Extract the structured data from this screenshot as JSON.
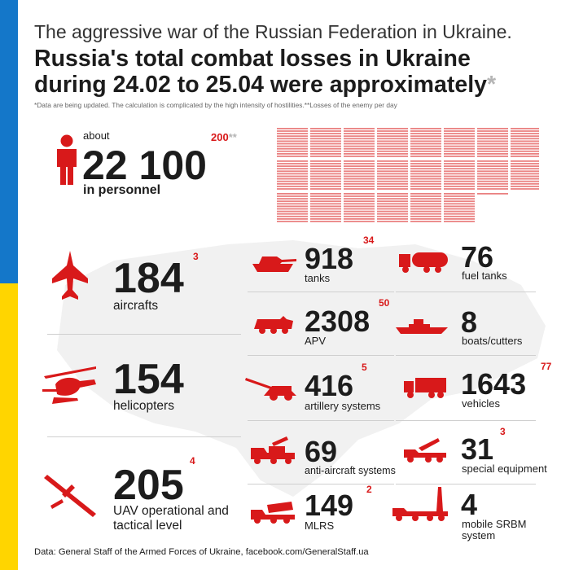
{
  "header": {
    "subtitle": "The aggressive war of the Russian Federation in Ukraine.",
    "title_line1": "Russia's total combat losses in Ukraine",
    "title_line2": "during 24.02 to 25.04 were approximately",
    "title_asterisk": "*",
    "note": "*Data are being updated. The calculation is complicated by the high intensity of hostilities.**Losses of the enemy per day"
  },
  "personnel": {
    "about": "about",
    "value": "22 100",
    "label": "in personnel",
    "daily": "200",
    "daily_mark": "**",
    "icon": "person-icon",
    "grid_count": 22100
  },
  "left_items": [
    {
      "id": "aircrafts",
      "icon": "fighter-jet-icon",
      "value": "184",
      "daily": "3",
      "label_lines": [
        "aircrafts"
      ]
    },
    {
      "id": "helicopters",
      "icon": "helicopter-icon",
      "value": "154",
      "daily": "",
      "label_lines": [
        "helicopters"
      ]
    },
    {
      "id": "uav",
      "icon": "drone-icon",
      "value": "205",
      "daily": "4",
      "label_lines": [
        "UAV operational and",
        "tactical level"
      ]
    }
  ],
  "middle_items": [
    {
      "id": "tanks",
      "icon": "tank-icon",
      "value": "918",
      "daily": "34",
      "label_lines": [
        "tanks"
      ]
    },
    {
      "id": "apv",
      "icon": "apv-icon",
      "value": "2308",
      "daily": "50",
      "label_lines": [
        "APV"
      ]
    },
    {
      "id": "artillery",
      "icon": "artillery-icon",
      "value": "416",
      "daily": "5",
      "label_lines": [
        "artillery systems"
      ]
    },
    {
      "id": "anti-aircraft",
      "icon": "anti-aircraft-icon",
      "value": "69",
      "daily": "",
      "label_lines": [
        "anti-aircraft systems"
      ]
    },
    {
      "id": "mlrs",
      "icon": "mlrs-icon",
      "value": "149",
      "daily": "2",
      "label_lines": [
        "MLRS"
      ]
    }
  ],
  "right_items": [
    {
      "id": "fuel-tanks",
      "icon": "fuel-tank-icon",
      "value": "76",
      "daily": "",
      "label_lines": [
        "fuel tanks"
      ]
    },
    {
      "id": "boats",
      "icon": "boat-icon",
      "value": "8",
      "daily": "",
      "label_lines": [
        "boats/cutters"
      ]
    },
    {
      "id": "vehicles",
      "icon": "truck-icon",
      "value": "1643",
      "daily": "77",
      "label_lines": [
        "vehicles"
      ]
    },
    {
      "id": "special-equipment",
      "icon": "crane-truck-icon",
      "value": "31",
      "daily": "3",
      "label_lines": [
        "special equipment"
      ]
    },
    {
      "id": "srbm",
      "icon": "missile-launcher-icon",
      "value": "4",
      "daily": "",
      "label_lines": [
        "mobile SRBM",
        "system"
      ]
    }
  ],
  "footer": {
    "source": "Data: General Staff of the Armed Forces of Ukraine, facebook.com/GeneralStaff.ua"
  },
  "colors": {
    "accent": "#d8191a",
    "flag_blue": "#1477c9",
    "flag_yellow": "#ffd500",
    "text": "#1c1c1c",
    "map": "#f1f1f1"
  }
}
